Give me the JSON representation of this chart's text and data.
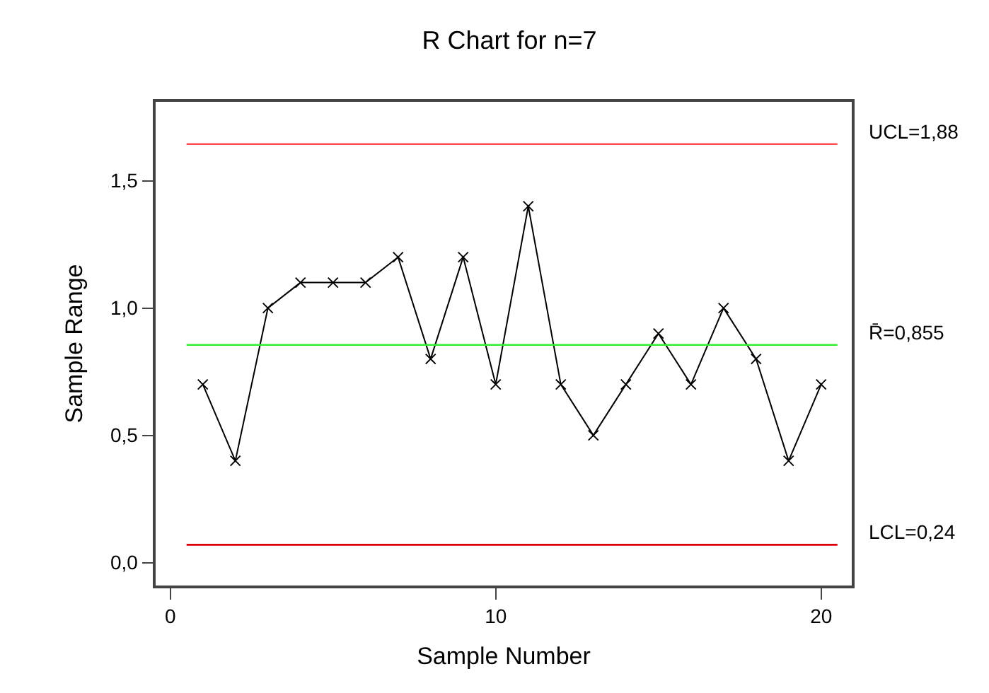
{
  "chart_data": {
    "type": "line",
    "title": "R Chart for n=7",
    "xlabel": "Sample Number",
    "ylabel": "Sample Range",
    "x": [
      1,
      2,
      3,
      4,
      5,
      6,
      7,
      8,
      9,
      10,
      11,
      12,
      13,
      14,
      15,
      16,
      17,
      18,
      19,
      20
    ],
    "series": [
      {
        "color": "#000000",
        "values": [
          0.7,
          0.4,
          1.0,
          1.1,
          1.1,
          1.1,
          1.2,
          0.8,
          1.2,
          0.7,
          1.4,
          0.7,
          0.5,
          0.7,
          0.9,
          0.7,
          1.0,
          0.8,
          0.4,
          0.7
        ]
      }
    ],
    "marker": "cross",
    "line_style": "solid",
    "xlim": [
      -0.45,
      20.94
    ],
    "xticks": [
      0,
      10,
      20
    ],
    "ylim": [
      -0.09,
      1.81
    ],
    "yticks": [
      {
        "value": 0,
        "label": "0,0"
      },
      {
        "value": 0.5,
        "label": "0,5"
      },
      {
        "value": 1.0,
        "label": "1,0"
      },
      {
        "value": 1.5,
        "label": "1,5"
      }
    ],
    "ref_lines": [
      {
        "axis": "y",
        "value": 1.644,
        "color": "#ff5050"
      },
      {
        "axis": "y",
        "value": 0.855,
        "color": "#33ee33"
      },
      {
        "axis": "y",
        "value": 0.07,
        "color": "#dd0000"
      }
    ],
    "annotations": [
      "UCL=1,88",
      "R̄=0,855",
      "LCL=0,24"
    ]
  }
}
